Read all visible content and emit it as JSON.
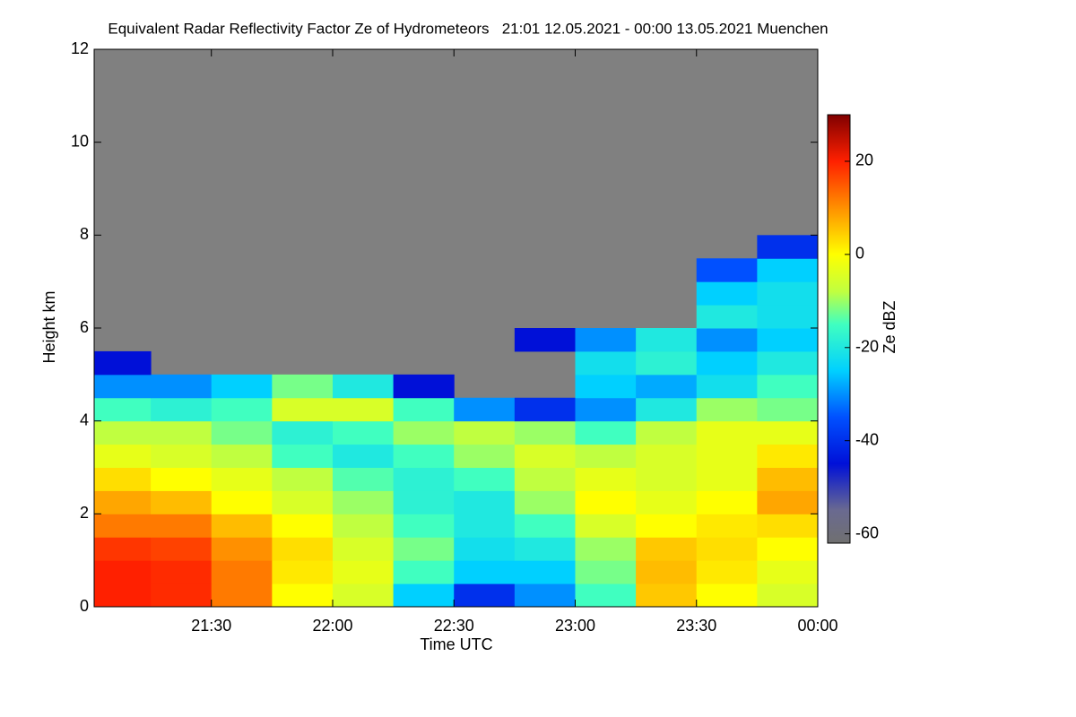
{
  "chart_data": {
    "type": "heatmap",
    "title": "Equivalent Radar Reflectivity Factor Ze of Hydrometeors   21:01 12.05.2021 - 00:00 13.05.2021 Muenchen",
    "xlabel": "Time UTC",
    "ylabel": "Height km",
    "colorbar_label": "Ze dBZ",
    "xlim": [
      21.0167,
      24
    ],
    "ylim": [
      0,
      12
    ],
    "xticks": [
      {
        "value": 21.5,
        "label": "21:30"
      },
      {
        "value": 22,
        "label": "22:00"
      },
      {
        "value": 22.5,
        "label": "22:30"
      },
      {
        "value": 23,
        "label": "23:00"
      },
      {
        "value": 23.5,
        "label": "23:30"
      },
      {
        "value": 24,
        "label": "00:00"
      }
    ],
    "yticks": [
      0,
      2,
      4,
      6,
      8,
      10,
      12
    ],
    "clim": [
      -62,
      30
    ],
    "cticks": [
      -60,
      -40,
      -20,
      0,
      20
    ],
    "nodata_color": "#808080",
    "colormap": [
      {
        "value": -62,
        "color": "#707070"
      },
      {
        "value": -55,
        "color": "#6a6a90"
      },
      {
        "value": -45,
        "color": "#0010d8"
      },
      {
        "value": -35,
        "color": "#0050ff"
      },
      {
        "value": -25,
        "color": "#00d0ff"
      },
      {
        "value": -15,
        "color": "#40ffc0"
      },
      {
        "value": -8,
        "color": "#c0ff40"
      },
      {
        "value": 0,
        "color": "#ffff00"
      },
      {
        "value": 10,
        "color": "#ff9000"
      },
      {
        "value": 20,
        "color": "#ff2000"
      },
      {
        "value": 30,
        "color": "#800000"
      }
    ],
    "x_bins": [
      21.0167,
      21.25,
      21.5,
      21.75,
      22,
      22.25,
      22.5,
      22.75,
      23,
      23.25,
      23.5,
      23.75,
      24
    ],
    "y_bins": [
      0,
      0.5,
      1,
      1.5,
      2,
      2.5,
      3,
      3.5,
      4,
      4.5,
      5,
      5.5,
      6,
      6.5,
      7,
      7.5,
      8
    ],
    "values": [
      [
        20,
        19,
        12,
        0,
        -5,
        -25,
        -40,
        -30,
        -15,
        5,
        0,
        -5
      ],
      [
        20,
        19,
        12,
        2,
        -3,
        -15,
        -25,
        -25,
        -12,
        6,
        2,
        -3
      ],
      [
        18,
        17,
        10,
        3,
        -5,
        -12,
        -22,
        -20,
        -10,
        5,
        3,
        0
      ],
      [
        12,
        12,
        6,
        0,
        -8,
        -15,
        -20,
        -15,
        -5,
        0,
        2,
        3
      ],
      [
        8,
        6,
        0,
        -5,
        -10,
        -18,
        -20,
        -10,
        0,
        -3,
        0,
        8
      ],
      [
        3,
        0,
        -3,
        -8,
        -14,
        -18,
        -15,
        -8,
        -3,
        -5,
        -3,
        6
      ],
      [
        -3,
        -5,
        -8,
        -15,
        -20,
        -15,
        -10,
        -5,
        -8,
        -5,
        -3,
        2
      ],
      [
        -8,
        -8,
        -12,
        -18,
        -15,
        -10,
        -8,
        -10,
        -15,
        -8,
        -3,
        -3
      ],
      [
        -15,
        -18,
        -15,
        -5,
        -5,
        -15,
        -30,
        -40,
        -30,
        -20,
        -10,
        -12
      ],
      [
        -30,
        -30,
        -25,
        -12,
        -20,
        -45,
        null,
        null,
        -25,
        -28,
        -22,
        -15
      ],
      [
        -45,
        null,
        null,
        null,
        null,
        null,
        null,
        null,
        -22,
        -18,
        -25,
        -20
      ],
      [
        null,
        null,
        null,
        null,
        null,
        null,
        null,
        -45,
        -30,
        -20,
        -30,
        -25
      ],
      [
        null,
        null,
        null,
        null,
        null,
        null,
        null,
        null,
        null,
        null,
        -20,
        -22
      ],
      [
        null,
        null,
        null,
        null,
        null,
        null,
        null,
        null,
        null,
        null,
        -25,
        -22
      ],
      [
        null,
        null,
        null,
        null,
        null,
        null,
        null,
        null,
        null,
        null,
        -35,
        -25
      ],
      [
        null,
        null,
        null,
        null,
        null,
        null,
        null,
        null,
        null,
        null,
        null,
        -40
      ]
    ]
  }
}
